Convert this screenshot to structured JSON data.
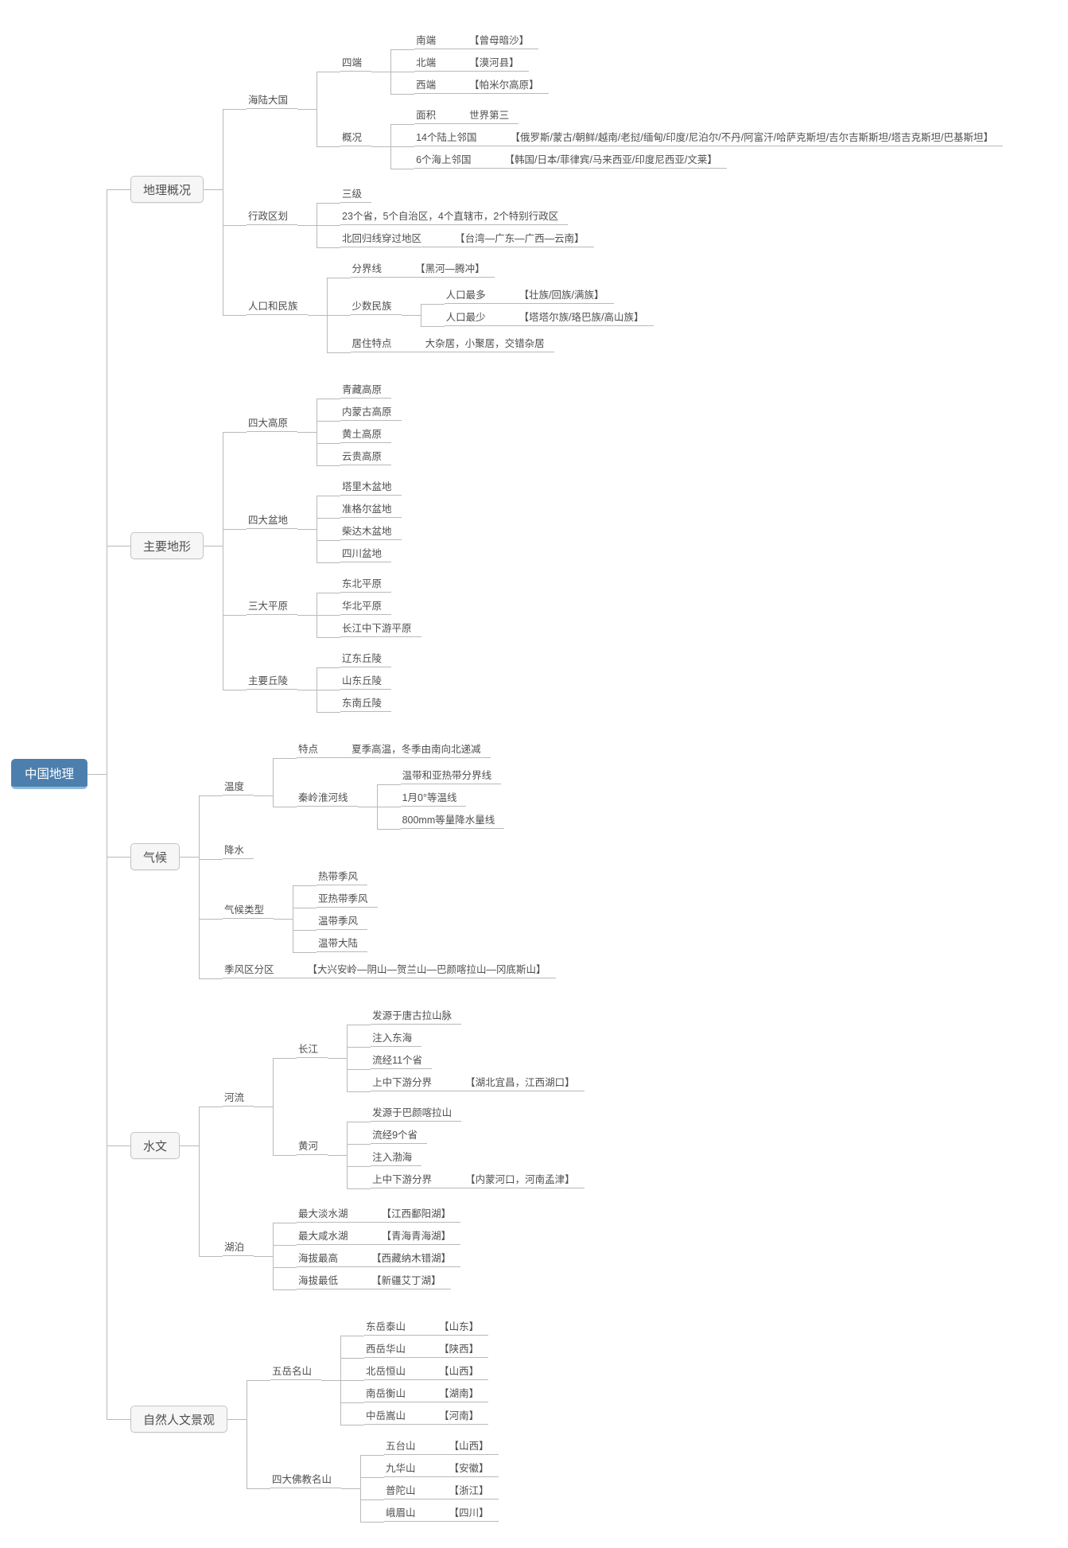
{
  "colors": {
    "root_bg": "#4d7fae",
    "root_text": "#ffffff",
    "root_underline": "#8fb8dc",
    "branch_box_bg": "#f6f6f6",
    "branch_box_border": "#c5c5c5",
    "line": "#b9b9b9",
    "text": "#4f4f4f"
  },
  "tree": {
    "label": "中国地理",
    "children": [
      {
        "label": "地理概况",
        "children": [
          {
            "label": "海陆大国",
            "children": [
              {
                "label": "四端",
                "children": [
                  {
                    "label": "南端",
                    "note": "【曾母暗沙】"
                  },
                  {
                    "label": "北端",
                    "note": "【漠河县】"
                  },
                  {
                    "label": "西端",
                    "note": "【帕米尔高原】"
                  }
                ]
              },
              {
                "label": "概况",
                "children": [
                  {
                    "label": "面积",
                    "note": "世界第三"
                  },
                  {
                    "label": "14个陆上邻国",
                    "note": "【俄罗斯/蒙古/朝鲜/越南/老挝/缅甸/印度/尼泊尔/不丹/阿富汗/哈萨克斯坦/吉尔吉斯斯坦/塔吉克斯坦/巴基斯坦】"
                  },
                  {
                    "label": "6个海上邻国",
                    "note": "【韩国/日本/菲律宾/马来西亚/印度尼西亚/文莱】"
                  }
                ]
              }
            ]
          },
          {
            "label": "行政区划",
            "children": [
              {
                "label": "三级"
              },
              {
                "label": "23个省，5个自治区，4个直辖市，2个特别行政区"
              },
              {
                "label": "北回归线穿过地区",
                "note": "【台湾—广东—广西—云南】"
              }
            ]
          },
          {
            "label": "人口和民族",
            "children": [
              {
                "label": "分界线",
                "note": "【黑河—腾冲】"
              },
              {
                "label": "少数民族",
                "children": [
                  {
                    "label": "人口最多",
                    "note": "【壮族/回族/满族】"
                  },
                  {
                    "label": "人口最少",
                    "note": "【塔塔尔族/珞巴族/高山族】"
                  }
                ]
              },
              {
                "label": "居住特点",
                "note": "大杂居，小聚居，交错杂居"
              }
            ]
          }
        ]
      },
      {
        "label": "主要地形",
        "children": [
          {
            "label": "四大高原",
            "children": [
              {
                "label": "青藏高原"
              },
              {
                "label": "内蒙古高原"
              },
              {
                "label": "黄土高原"
              },
              {
                "label": "云贵高原"
              }
            ]
          },
          {
            "label": "四大盆地",
            "children": [
              {
                "label": "塔里木盆地"
              },
              {
                "label": "准格尔盆地"
              },
              {
                "label": "柴达木盆地"
              },
              {
                "label": "四川盆地"
              }
            ]
          },
          {
            "label": "三大平原",
            "children": [
              {
                "label": "东北平原"
              },
              {
                "label": "华北平原"
              },
              {
                "label": "长江中下游平原"
              }
            ]
          },
          {
            "label": "主要丘陵",
            "children": [
              {
                "label": "辽东丘陵"
              },
              {
                "label": "山东丘陵"
              },
              {
                "label": "东南丘陵"
              }
            ]
          }
        ]
      },
      {
        "label": "气候",
        "children": [
          {
            "label": "温度",
            "children": [
              {
                "label": "特点",
                "note": "夏季高温，冬季由南向北递减"
              },
              {
                "label": "秦岭淮河线",
                "children": [
                  {
                    "label": "温带和亚热带分界线"
                  },
                  {
                    "label": "1月0°等温线"
                  },
                  {
                    "label": "800mm等量降水量线"
                  }
                ]
              }
            ]
          },
          {
            "label": "降水"
          },
          {
            "label": "气候类型",
            "children": [
              {
                "label": "热带季风"
              },
              {
                "label": "亚热带季风"
              },
              {
                "label": "温带季风"
              },
              {
                "label": "温带大陆"
              }
            ]
          },
          {
            "label": "季风区分区",
            "note": "【大兴安岭—阴山—贺兰山—巴颜喀拉山—冈底斯山】"
          }
        ]
      },
      {
        "label": "水文",
        "children": [
          {
            "label": "河流",
            "children": [
              {
                "label": "长江",
                "children": [
                  {
                    "label": "发源于唐古拉山脉"
                  },
                  {
                    "label": "注入东海"
                  },
                  {
                    "label": "流经11个省"
                  },
                  {
                    "label": "上中下游分界",
                    "note": "【湖北宜昌，江西湖口】"
                  }
                ]
              },
              {
                "label": "黄河",
                "children": [
                  {
                    "label": "发源于巴颜喀拉山"
                  },
                  {
                    "label": "流经9个省"
                  },
                  {
                    "label": "注入渤海"
                  },
                  {
                    "label": "上中下游分界",
                    "note": "【内蒙河口，河南孟津】"
                  }
                ]
              }
            ]
          },
          {
            "label": "湖泊",
            "children": [
              {
                "label": "最大淡水湖",
                "note": "【江西鄱阳湖】"
              },
              {
                "label": "最大咸水湖",
                "note": "【青海青海湖】"
              },
              {
                "label": "海拔最高",
                "note": "【西藏纳木错湖】"
              },
              {
                "label": "海拔最低",
                "note": "【新疆艾丁湖】"
              }
            ]
          }
        ]
      },
      {
        "label": "自然人文景观",
        "children": [
          {
            "label": "五岳名山",
            "children": [
              {
                "label": "东岳泰山",
                "note": "【山东】"
              },
              {
                "label": "西岳华山",
                "note": "【陕西】"
              },
              {
                "label": "北岳恒山",
                "note": "【山西】"
              },
              {
                "label": "南岳衡山",
                "note": "【湖南】"
              },
              {
                "label": "中岳嵩山",
                "note": "【河南】"
              }
            ]
          },
          {
            "label": "四大佛教名山",
            "children": [
              {
                "label": "五台山",
                "note": "【山西】"
              },
              {
                "label": "九华山",
                "note": "【安徽】"
              },
              {
                "label": "普陀山",
                "note": "【浙江】"
              },
              {
                "label": "峨眉山",
                "note": "【四川】"
              }
            ]
          }
        ]
      }
    ]
  }
}
